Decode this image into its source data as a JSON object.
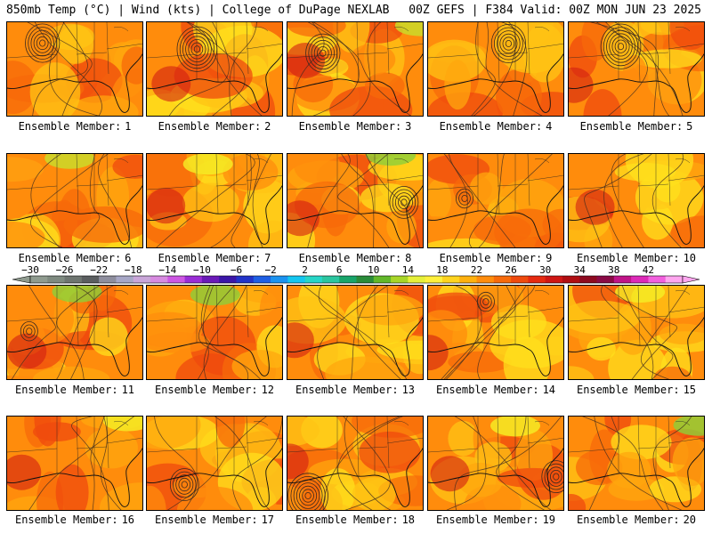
{
  "header": {
    "left": "850mb Temp (°C) | Wind (kts) | College of DuPage NEXLAB",
    "right": "00Z GEFS | F384 Valid: 00Z MON JUN 23 2025"
  },
  "member_label": "Ensemble Member:",
  "members": [
    1,
    2,
    3,
    4,
    5,
    6,
    7,
    8,
    9,
    10,
    11,
    12,
    13,
    14,
    15,
    16,
    17,
    18,
    19,
    20
  ],
  "colorbar": {
    "tick_labels": [
      "−30",
      "−26",
      "−22",
      "−18",
      "−14",
      "−10",
      "−6",
      "−2",
      "2",
      "6",
      "10",
      "14",
      "18",
      "22",
      "26",
      "30",
      "34",
      "38",
      "42"
    ],
    "colors": [
      "#8f9b8f",
      "#7e8a80",
      "#6e7570",
      "#5b5e60",
      "#8e8e9e",
      "#a7a7c6",
      "#c9a6d9",
      "#d78ae0",
      "#cd57e3",
      "#9a2dd6",
      "#6a1ab8",
      "#3b16a8",
      "#2233c8",
      "#1f5fe4",
      "#1b93f0",
      "#14c6f0",
      "#27d6c7",
      "#2bc6a0",
      "#18a56a",
      "#2a8c3a",
      "#62b82a",
      "#a8d628",
      "#e6f03a",
      "#fff03c",
      "#ffd41e",
      "#ffb10e",
      "#ff8c0c",
      "#f76a0a",
      "#ef4a0e",
      "#e62a10",
      "#cf1614",
      "#b00e12",
      "#8e0a20",
      "#8a0a46",
      "#c01488",
      "#dd2ab8",
      "#f260de",
      "#ffa6ef"
    ]
  },
  "map_palette": [
    "#ffe01c",
    "#ffc414",
    "#ffa70e",
    "#ff8c0c",
    "#f76a0a",
    "#ef4a0e",
    "#d21e12",
    "#9e0c10",
    "#f5f026",
    "#c8e02c",
    "#8cd03a"
  ]
}
